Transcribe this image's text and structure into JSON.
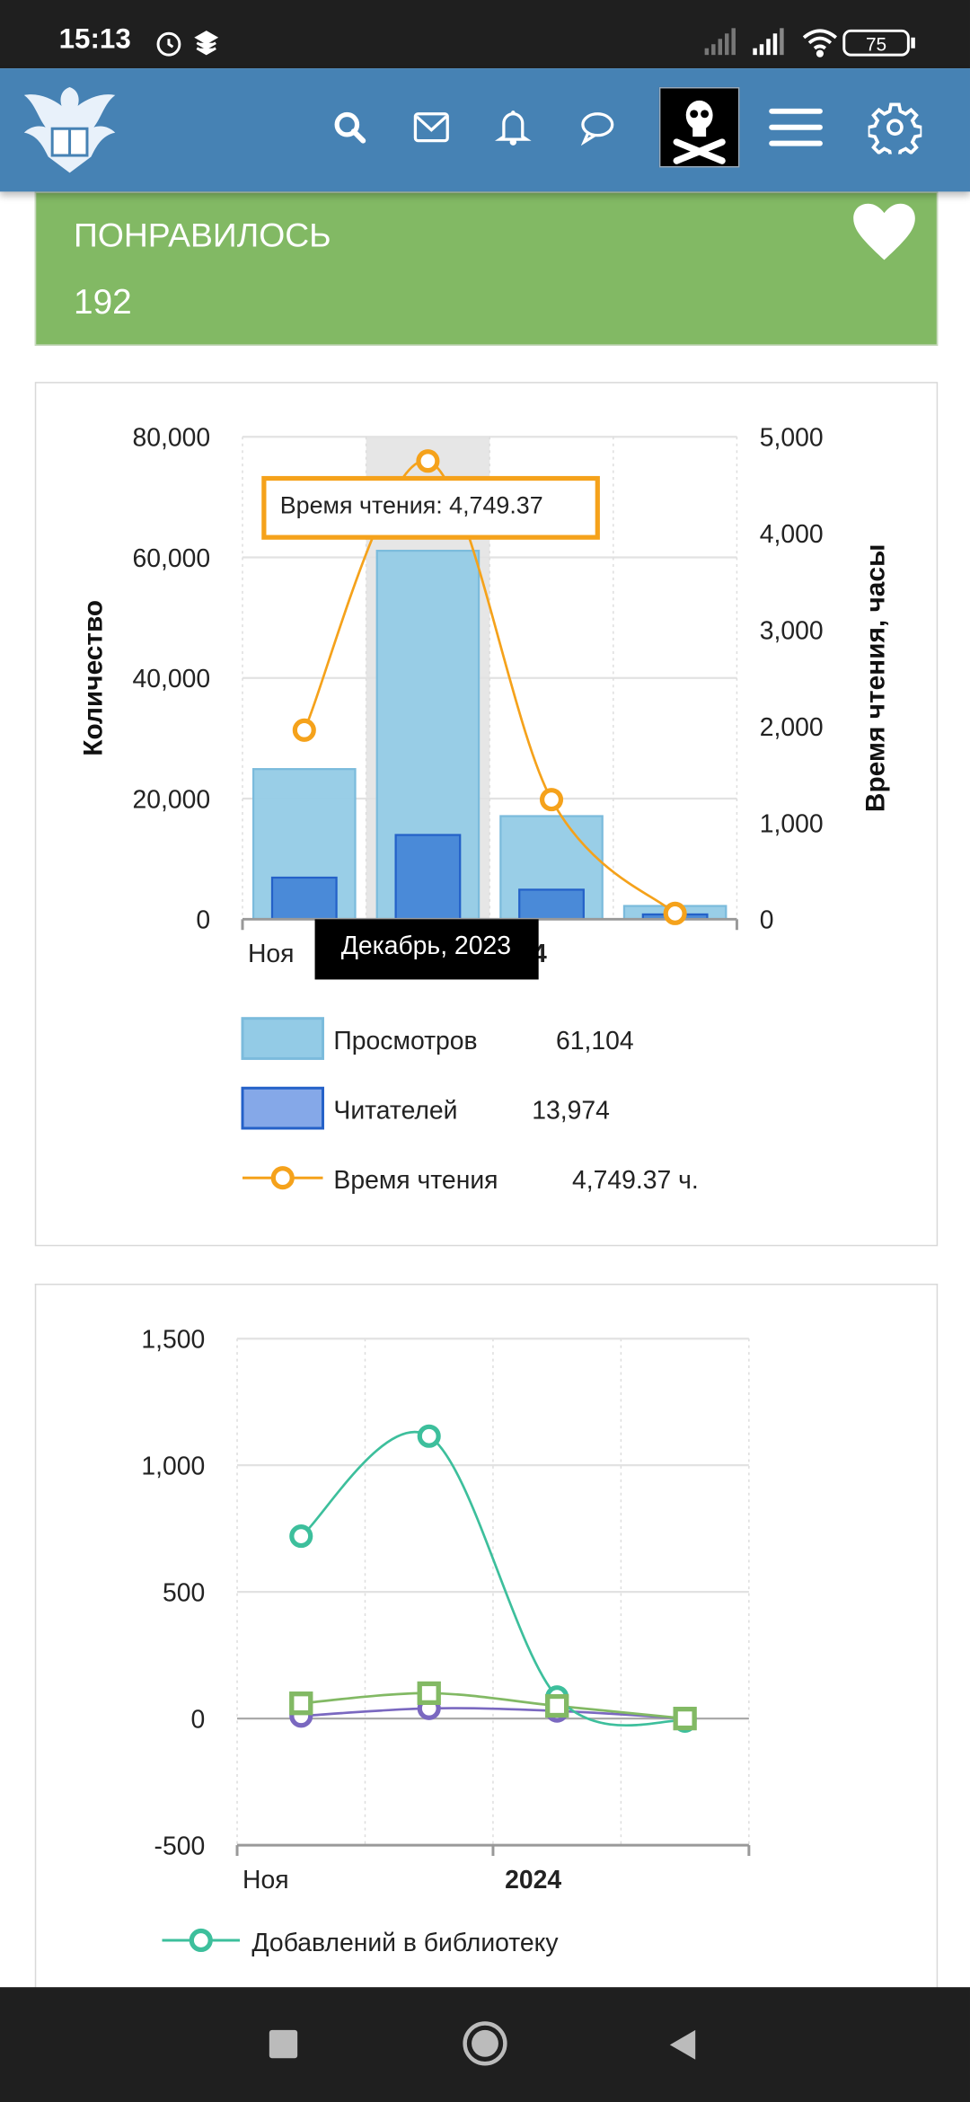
{
  "status_bar": {
    "time": "15:13",
    "battery": "75",
    "icons": [
      "alarm-icon",
      "layers-icon",
      "signal-icon",
      "signal-icon",
      "wifi-icon",
      "battery-icon"
    ]
  },
  "header": {
    "icons": [
      "logo-eagle-book",
      "search-icon",
      "mail-icon",
      "bell-icon",
      "chat-icon",
      "avatar-jolly-roger",
      "menu-icon",
      "gear-icon"
    ],
    "color": "#4682b4"
  },
  "likes": {
    "label": "ПОНРАВИЛОСЬ",
    "count": "192",
    "icon": "heart-icon",
    "color": "#82b964"
  },
  "chart_data": [
    {
      "type": "bar",
      "categories": [
        "Ноя",
        "Декабрь, 2023",
        "2024",
        ""
      ],
      "x_tick_labels": [
        "Ноя",
        "2024"
      ],
      "ylabel": "Количество",
      "ylabel_right": "Время чтения, часы",
      "ylim": [
        0,
        80000
      ],
      "ylim_right": [
        0,
        5000
      ],
      "yticks": [
        "0",
        "20,000",
        "40,000",
        "60,000",
        "80,000"
      ],
      "yticks_right": [
        "0",
        "1,000",
        "2,000",
        "3,000",
        "4,000",
        "5,000"
      ],
      "grid": true,
      "legend_placement": "bottom",
      "series": [
        {
          "name": "Просмотров",
          "kind": "bar",
          "color": "#93cbe6",
          "values": [
            24900,
            61104,
            17100,
            2200
          ],
          "legend_value": "61,104"
        },
        {
          "name": "Читателей",
          "kind": "bar",
          "color": "#4a8ad8",
          "values": [
            6900,
            13974,
            4900,
            800
          ],
          "legend_value": "13,974"
        },
        {
          "name": "Время чтения",
          "kind": "line",
          "axis": "right",
          "color": "#f5a21b",
          "values": [
            1960,
            4749.37,
            1240,
            60
          ],
          "legend_value": "4,749.37 ч."
        }
      ],
      "highlighted_category": 1,
      "tooltip": "Время чтения: 4,749.37",
      "crosshair_label": "Декабрь, 2023"
    },
    {
      "type": "line",
      "categories": [
        "Ноя",
        "",
        "2024",
        ""
      ],
      "x_tick_labels": [
        "Ноя",
        "2024"
      ],
      "ylim": [
        -500,
        1500
      ],
      "yticks": [
        "-500",
        "0",
        "500",
        "1,000",
        "1,500"
      ],
      "grid": true,
      "legend_placement": "bottom",
      "series": [
        {
          "name": "Добавлений в библиотеку",
          "marker": "circle",
          "color": "#3dbf9c",
          "values": [
            720,
            1115,
            85,
            -10
          ]
        },
        {
          "marker": "circle",
          "color": "#7a68c0",
          "values": [
            10,
            40,
            30,
            0
          ]
        },
        {
          "marker": "square",
          "color": "#82b964",
          "values": [
            60,
            100,
            50,
            0
          ]
        }
      ]
    }
  ],
  "nav_bar": {
    "icons": [
      "recents-square-icon",
      "home-circle-icon",
      "back-triangle-icon"
    ]
  }
}
